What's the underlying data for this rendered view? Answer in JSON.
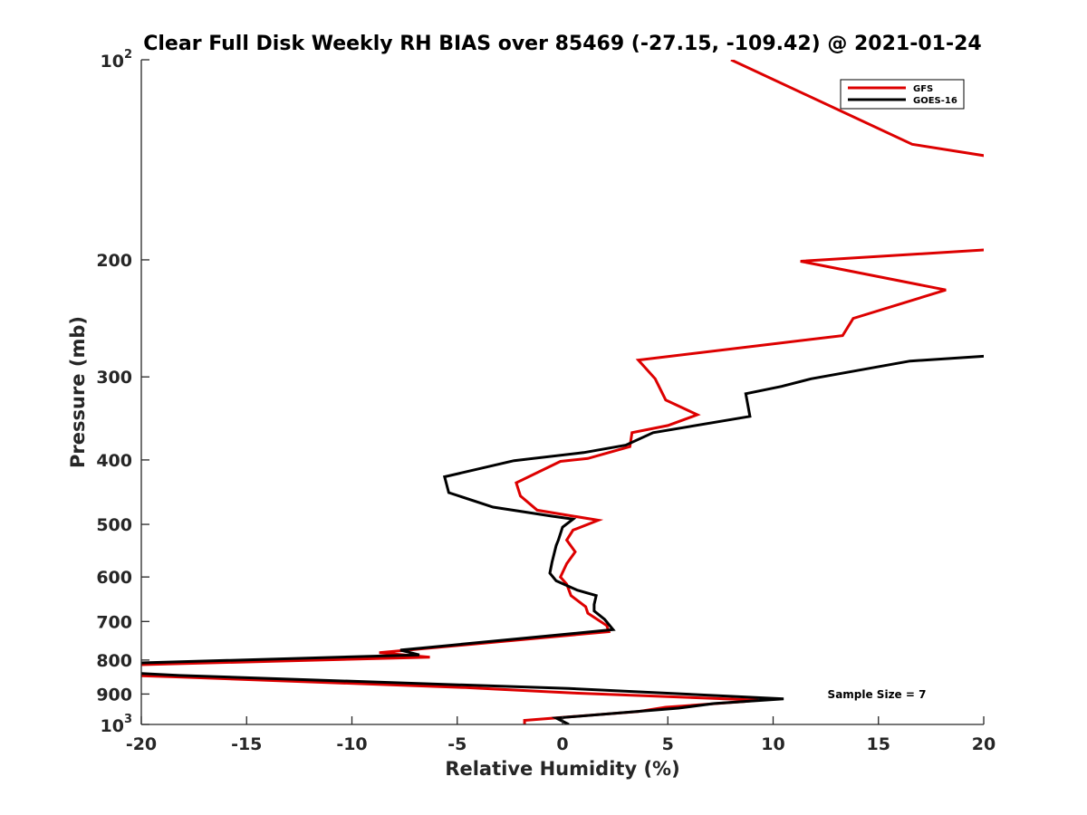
{
  "chart_data": {
    "type": "line",
    "title": "Clear Full Disk Weekly RH BIAS over 85469 (-27.15, -109.42) @ 2021-01-24",
    "xlabel": "Relative Humidity (%)",
    "ylabel": "Pressure (mb)",
    "xlim": [
      -20,
      20
    ],
    "ylim": [
      100,
      1000
    ],
    "y_scale": "log",
    "y_reversed": true,
    "grid": false,
    "legend_position": "top-right",
    "x_ticks": [
      -20,
      -15,
      -10,
      -5,
      0,
      5,
      10,
      15,
      20
    ],
    "y_ticks": [
      {
        "value": 100,
        "base": "10",
        "exp": "2"
      },
      {
        "value": 200,
        "label": "200"
      },
      {
        "value": 300,
        "label": "300"
      },
      {
        "value": 400,
        "label": "400"
      },
      {
        "value": 500,
        "label": "500"
      },
      {
        "value": 600,
        "label": "600"
      },
      {
        "value": 700,
        "label": "700"
      },
      {
        "value": 800,
        "label": "800"
      },
      {
        "value": 900,
        "label": "900"
      },
      {
        "value": 1000,
        "base": "10",
        "exp": "3"
      }
    ],
    "series": [
      {
        "name": "GFS",
        "color": "#dd0000",
        "points": [
          [
            8.0,
            100
          ],
          [
            16.6,
            134
          ],
          [
            21.0,
            141
          ],
          [
            null,
            null
          ],
          [
            21.5,
            192
          ],
          [
            11.3,
            201
          ],
          [
            18.2,
            222
          ],
          [
            13.8,
            245
          ],
          [
            13.3,
            260
          ],
          [
            3.6,
            283
          ],
          [
            4.4,
            302
          ],
          [
            4.9,
            325
          ],
          [
            6.4,
            342
          ],
          [
            5.0,
            355
          ],
          [
            3.3,
            364
          ],
          [
            3.2,
            382
          ],
          [
            1.2,
            398
          ],
          [
            -0.1,
            402
          ],
          [
            -2.2,
            433
          ],
          [
            -2.0,
            453
          ],
          [
            -1.2,
            476
          ],
          [
            1.7,
            493
          ],
          [
            0.5,
            510
          ],
          [
            0.2,
            528
          ],
          [
            0.6,
            550
          ],
          [
            0.2,
            573
          ],
          [
            -0.1,
            600
          ],
          [
            0.2,
            615
          ],
          [
            0.4,
            640
          ],
          [
            1.1,
            665
          ],
          [
            1.2,
            680
          ],
          [
            2.1,
            710
          ],
          [
            2.2,
            725
          ],
          [
            -8.7,
            780
          ],
          [
            -6.3,
            792
          ],
          [
            -20.0,
            813
          ],
          [
            null,
            null
          ],
          [
            -20.0,
            845
          ],
          [
            -18.5,
            848
          ],
          [
            -4.6,
            880
          ],
          [
            0.5,
            897
          ],
          [
            9.3,
            919
          ],
          [
            8.6,
            924
          ],
          [
            4.9,
            942
          ],
          [
            3.6,
            956
          ],
          [
            -1.8,
            986
          ],
          [
            -1.8,
            1000
          ]
        ]
      },
      {
        "name": "GOES-16",
        "color": "#000000",
        "points": [
          [
            21.0,
            278
          ],
          [
            16.5,
            284
          ],
          [
            11.8,
            302
          ],
          [
            10.4,
            310
          ],
          [
            8.7,
            318
          ],
          [
            8.9,
            344
          ],
          [
            4.3,
            364
          ],
          [
            3.0,
            380
          ],
          [
            1.0,
            390
          ],
          [
            -2.3,
            401
          ],
          [
            -5.6,
            424
          ],
          [
            -5.4,
            448
          ],
          [
            -3.3,
            471
          ],
          [
            -0.5,
            486
          ],
          [
            0.5,
            491
          ],
          [
            0.0,
            505
          ],
          [
            -0.2,
            528
          ],
          [
            -0.3,
            538
          ],
          [
            -0.5,
            570
          ],
          [
            -0.6,
            592
          ],
          [
            -0.3,
            608
          ],
          [
            0.7,
            628
          ],
          [
            1.6,
            640
          ],
          [
            1.5,
            660
          ],
          [
            1.5,
            675
          ],
          [
            2.0,
            695
          ],
          [
            2.4,
            720
          ],
          [
            -7.7,
            773
          ],
          [
            -6.8,
            786
          ],
          [
            -20.0,
            808
          ],
          [
            null,
            null
          ],
          [
            -20.0,
            838
          ],
          [
            -18.2,
            844
          ],
          [
            0.3,
            883
          ],
          [
            10.5,
            915
          ],
          [
            7.2,
            930
          ],
          [
            5.5,
            945
          ],
          [
            -0.3,
            978
          ],
          [
            0.3,
            1000
          ]
        ]
      }
    ],
    "annotation": "Sample Size = 7"
  }
}
